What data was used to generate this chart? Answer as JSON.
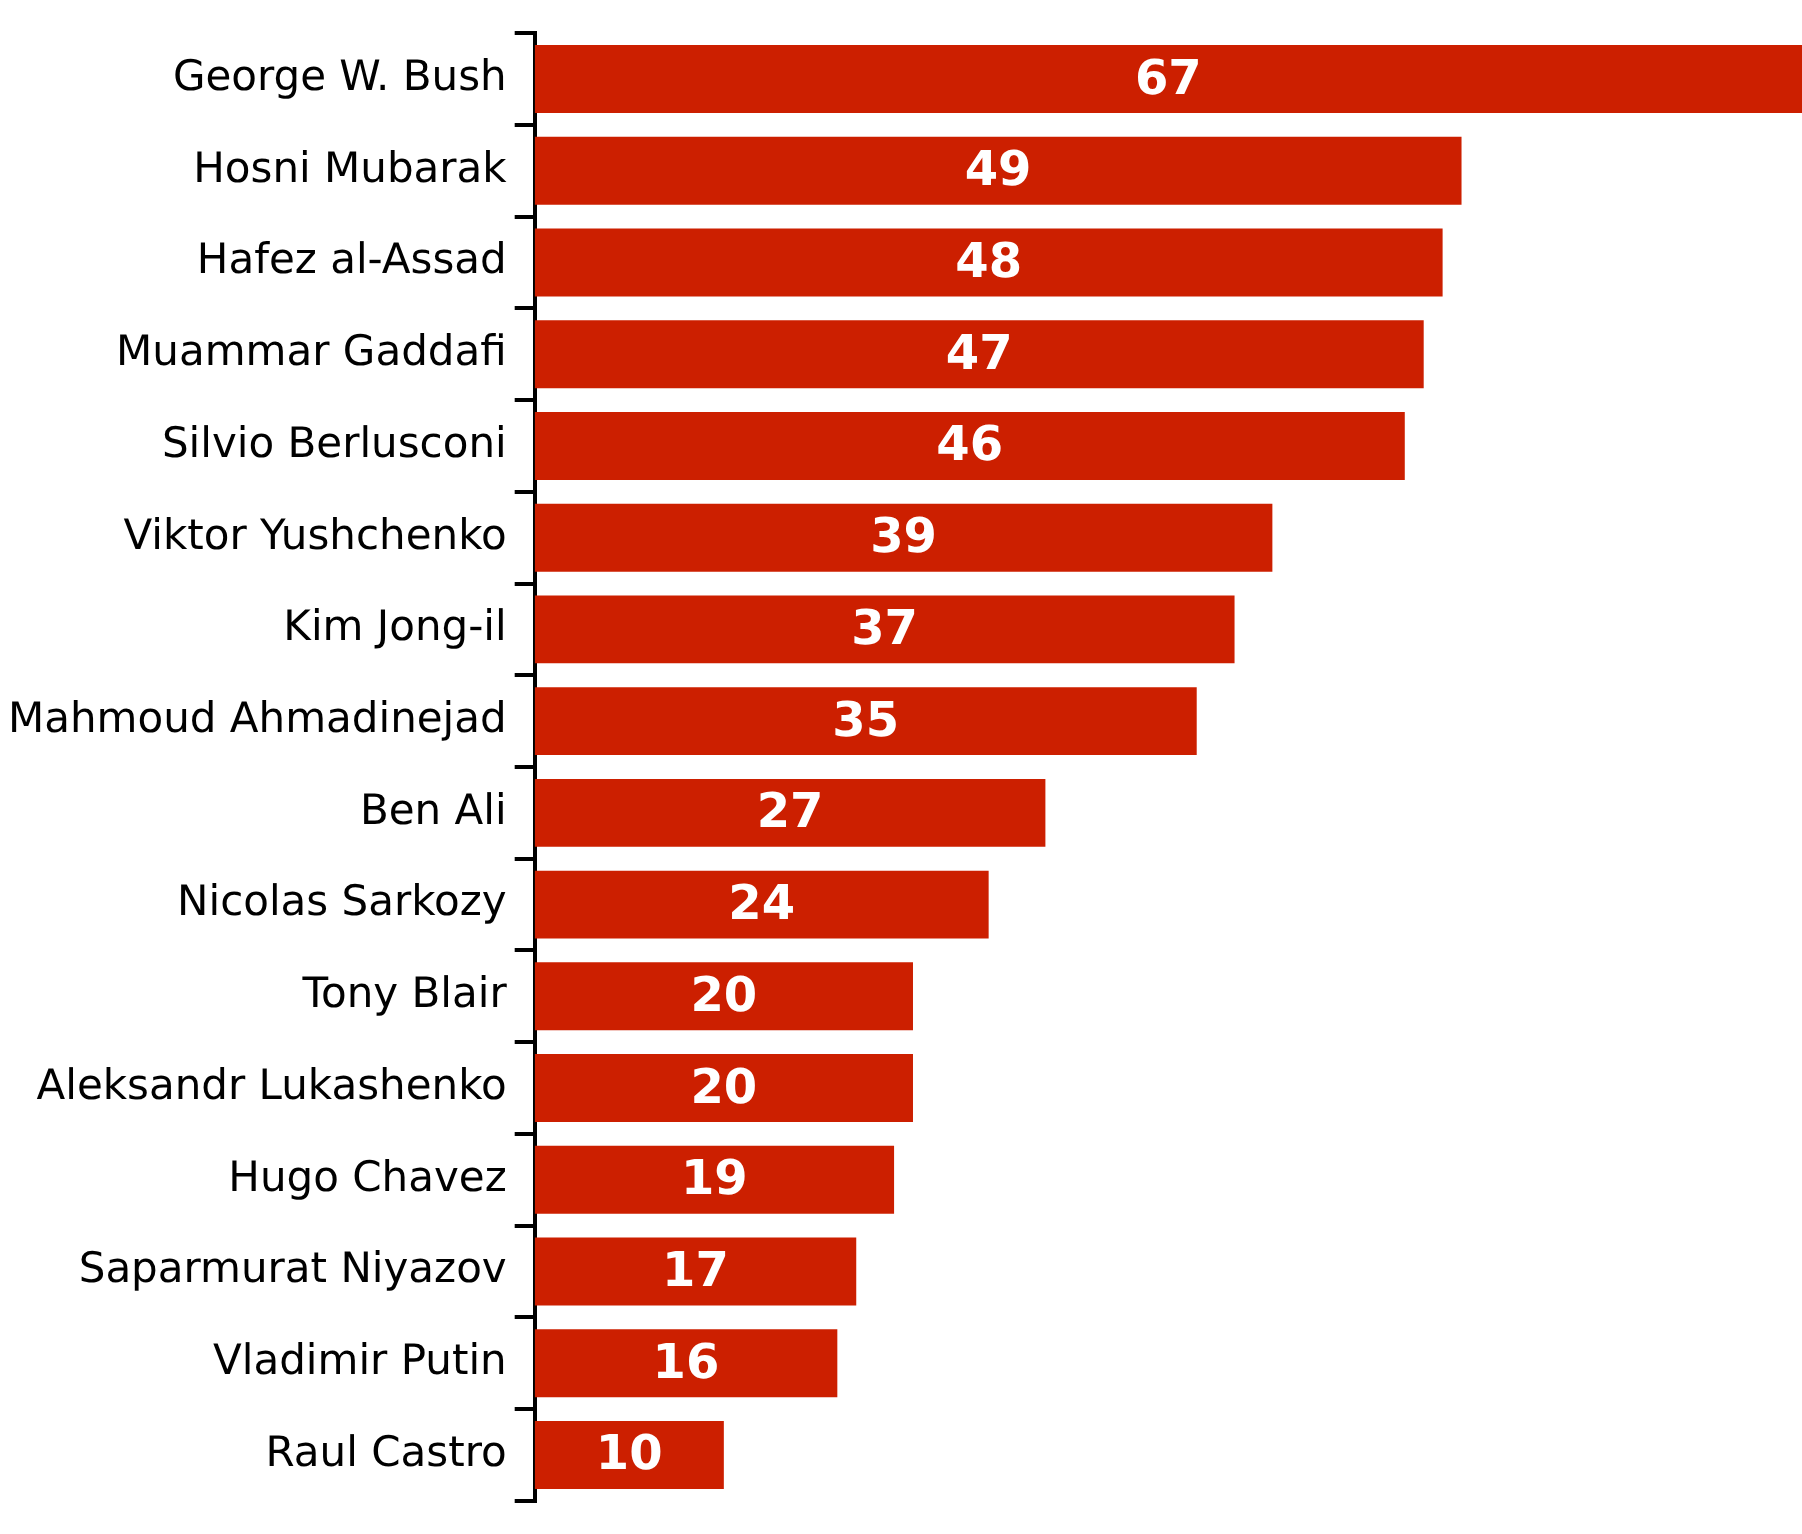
{
  "chart_data": {
    "type": "bar",
    "orientation": "horizontal",
    "categories": [
      "George W. Bush",
      "Hosni Mubarak",
      "Hafez al-Assad",
      "Muammar Gaddafi",
      "Silvio Berlusconi",
      "Viktor Yushchenko",
      "Kim Jong-il",
      "Mahmoud Ahmadinejad",
      "Ben Ali",
      "Nicolas Sarkozy",
      "Tony Blair",
      "Aleksandr Lukashenko",
      "Hugo Chavez",
      "Saparmurat Niyazov",
      "Vladimir Putin",
      "Raul Castro"
    ],
    "values": [
      67,
      49,
      48,
      47,
      46,
      39,
      37,
      35,
      27,
      24,
      20,
      20,
      19,
      17,
      16,
      10
    ],
    "color": "#cc1f00",
    "xlim": [
      0,
      67
    ],
    "data_labels": true,
    "tick_labels": "y",
    "grid": false,
    "legend": false
  }
}
